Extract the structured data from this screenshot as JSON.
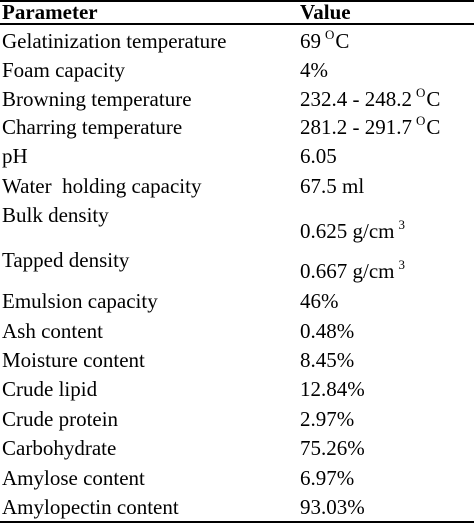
{
  "table": {
    "header": [
      "Parameter",
      "Value"
    ],
    "rows": [
      {
        "parameter": "Gelatinization temperature",
        "value": "69",
        "sup": "O",
        "unit": "C"
      },
      {
        "parameter": "Foam capacity",
        "value": "4%"
      },
      {
        "parameter": "Browning temperature",
        "value": "232.4 - 248.2",
        "sup": "O",
        "unit": "C"
      },
      {
        "parameter": "Charring temperature",
        "value": "281.2 - 291.7",
        "sup": "O",
        "unit": "C"
      },
      {
        "parameter": "pH",
        "value": "6.05"
      },
      {
        "parameter": "Water  holding capacity",
        "value": "67.5 ml"
      },
      {
        "parameter": "Bulk density",
        "value": "0.625 g/cm",
        "sup": "3"
      },
      {
        "parameter": "Tapped density",
        "value": "0.667 g/cm",
        "sup": "3"
      },
      {
        "parameter": "Emulsion capacity",
        "value": "46%"
      },
      {
        "parameter": "Ash content",
        "value": "0.48%"
      },
      {
        "parameter": "Moisture content",
        "value": "8.45%"
      },
      {
        "parameter": "Crude lipid",
        "value": "12.84%"
      },
      {
        "parameter": "Crude protein",
        "value": "2.97%"
      },
      {
        "parameter": "Carbohydrate",
        "value": "75.26%"
      },
      {
        "parameter": "Amylose content",
        "value": "6.97%"
      },
      {
        "parameter": "Amylopectin content",
        "value": "93.03%"
      }
    ]
  }
}
